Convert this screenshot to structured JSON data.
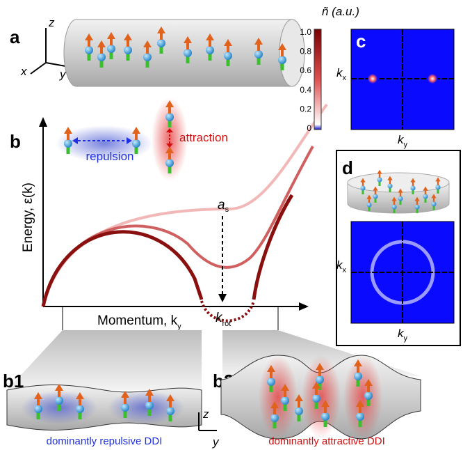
{
  "panels": {
    "a": {
      "label": "a",
      "axes": {
        "z": "z",
        "x": "x",
        "y": "y"
      }
    },
    "b": {
      "label": "b",
      "repulsion": "repulsion",
      "attraction": "attraction",
      "y_axis": {
        "main": "Energy, ε(k)"
      },
      "x_axis": {
        "main": "Momentum, k",
        "sub": "y"
      },
      "scattering_length": {
        "main": "a",
        "sub": "s"
      },
      "k_rot": {
        "main": "k",
        "sub": "rot"
      }
    },
    "c": {
      "label": "c",
      "colorbar_title": "ñ (a.u.)",
      "colorbar_ticks": [
        "1.0",
        "0.8",
        "0.6",
        "0.4",
        "0.2",
        "0"
      ],
      "x_axis": {
        "main": "k",
        "sub": "y"
      },
      "y_axis": {
        "main": "k",
        "sub": "x"
      }
    },
    "d": {
      "label": "d",
      "x_axis": {
        "main": "k",
        "sub": "y"
      },
      "y_axis": {
        "main": "k",
        "sub": "x"
      }
    },
    "b1": {
      "label": "b1",
      "caption": "dominantly repulsive DDI"
    },
    "b2": {
      "label": "b2",
      "caption": "dominantly attractive DDI",
      "axes": {
        "z": "z",
        "y": "y"
      }
    }
  }
}
